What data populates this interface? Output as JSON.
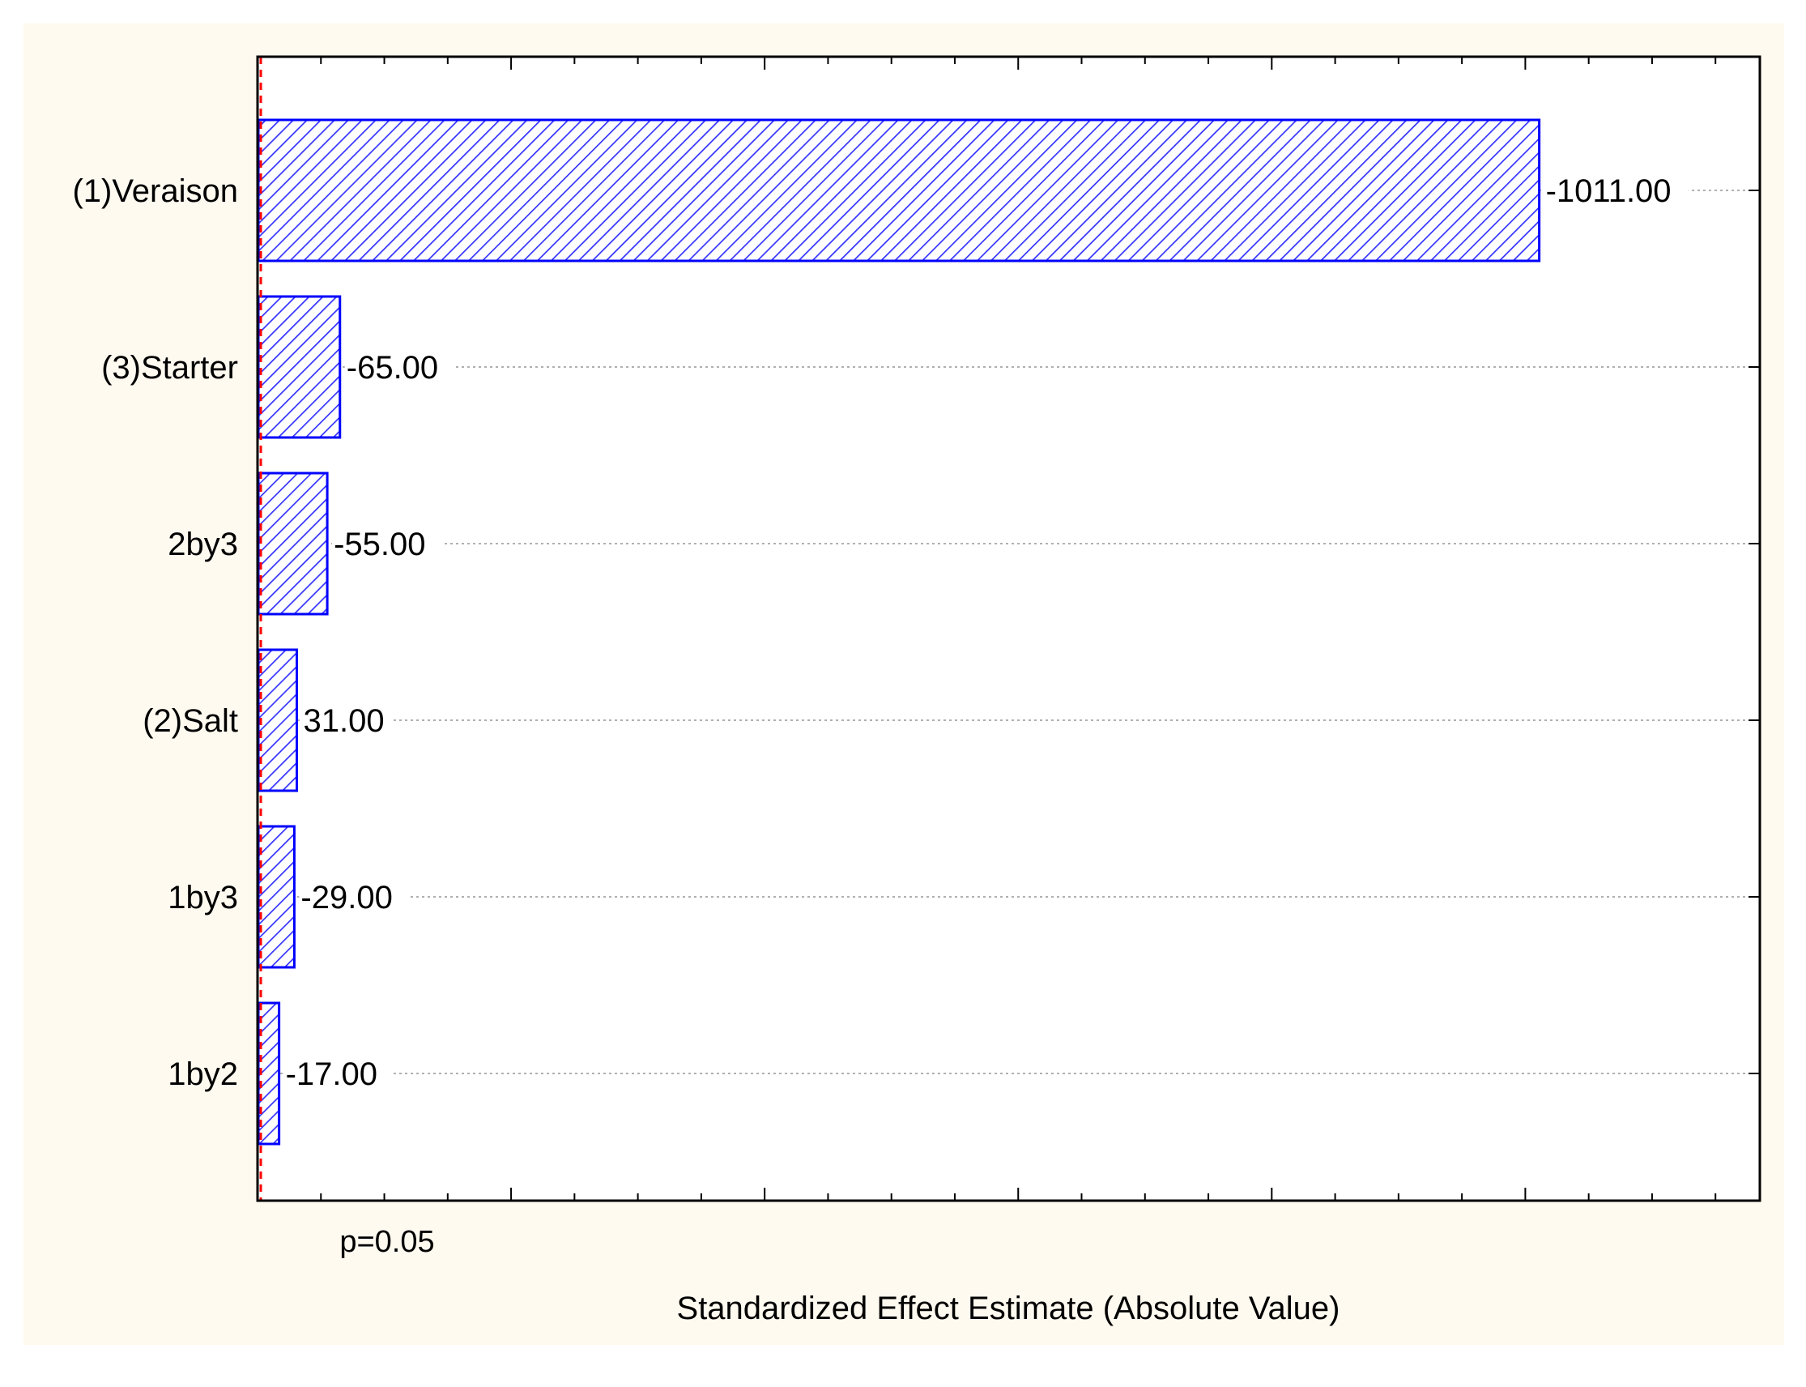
{
  "chart_data": {
    "type": "bar",
    "orientation": "horizontal",
    "categories": [
      "(1)Veraison",
      "(3)Starter",
      "2by3",
      "(2)Salt",
      "1by3",
      "1by2"
    ],
    "values": [
      1011,
      65,
      55,
      31,
      29,
      17
    ],
    "value_labels": [
      "-1011.00",
      "-65.00",
      "-55.00",
      "31.00",
      "-29.00",
      "-17.00"
    ],
    "title": "",
    "xlabel": "Standardized Effect Estimate (Absolute Value)",
    "ylabel": "",
    "xlim": [
      0,
      1185
    ],
    "reference_line": {
      "value": 2.571,
      "label": "p=0.05",
      "color": "#ff0000",
      "style": "dashed"
    },
    "grid": "horizontal dotted at bars",
    "bar_fill": "diagonal hatch",
    "colors": {
      "bar_stroke": "#0000ff",
      "bar_hatch": "#3333ff",
      "bar_fill": "#ffffff",
      "reference_line": "#ff0000",
      "outer_background": "#fffaf0",
      "plot_background": "#ffffff",
      "grid": "#b0b0b0"
    }
  }
}
